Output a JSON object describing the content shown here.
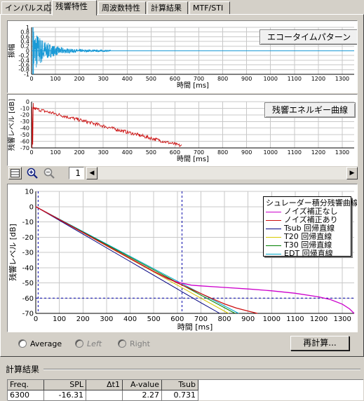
{
  "tabs": [
    {
      "label": "インパルス応答",
      "active": false
    },
    {
      "label": "残響特性",
      "active": true
    },
    {
      "label": "周波数特性",
      "active": false
    },
    {
      "label": "計算結果",
      "active": false
    },
    {
      "label": "MTF/STI",
      "active": false
    }
  ],
  "toolbar": {
    "icons": [
      "fit-view-icon",
      "zoom-in-icon",
      "zoom-out-icon"
    ],
    "page_value": "1",
    "scroll_left": "◀",
    "scroll_right": "▶"
  },
  "chart_data": [
    {
      "type": "line",
      "title": "エコータイムパターン",
      "xlabel": "時間 [ms]",
      "ylabel": "振幅",
      "xlim": [
        0,
        1350
      ],
      "ylim": [
        -1,
        1
      ],
      "xticks": [
        0,
        100,
        200,
        300,
        400,
        500,
        600,
        700,
        800,
        900,
        1000,
        1100,
        1200,
        1300
      ],
      "yticks": [
        -1,
        -0.8,
        -0.6,
        -0.4,
        -0.2,
        0,
        0.2,
        0.4,
        0.6,
        0.8,
        1
      ],
      "ytick_labels": [
        "-1",
        "-0.8",
        "-0.6",
        "-0.4",
        "-0.2",
        "0",
        "0.2",
        "0.4",
        "0.6",
        "0.8",
        "1"
      ],
      "grid": true,
      "series": [
        {
          "color": "#1b9ad6",
          "points": []
        }
      ]
    },
    {
      "type": "line",
      "title": "残響エネルギー曲線",
      "xlabel": "時間 [ms]",
      "ylabel": "残響レベル [dB]",
      "xlim": [
        0,
        1350
      ],
      "ylim": [
        -70,
        0
      ],
      "xticks": [
        0,
        100,
        200,
        300,
        400,
        500,
        600,
        700,
        800,
        900,
        1000,
        1100,
        1200,
        1300
      ],
      "yticks": [
        -70,
        -60,
        -50,
        -40,
        -30,
        -20,
        -10,
        0
      ],
      "ytick_labels": [
        "-70",
        "-60",
        "-50",
        "-40",
        "-30",
        "-20",
        "-10",
        "0"
      ],
      "grid": true,
      "series": [
        {
          "color": "#cc1111",
          "points": []
        }
      ]
    },
    {
      "type": "line",
      "title": "シュレーダー積分残響曲線",
      "xlabel": "時間 [ms]",
      "ylabel": "残響レベル [dB]",
      "xlim": [
        0,
        1350
      ],
      "ylim": [
        -70,
        10
      ],
      "xticks": [
        0,
        100,
        200,
        300,
        400,
        500,
        600,
        700,
        800,
        900,
        1000,
        1100,
        1200,
        1300
      ],
      "yticks": [
        -70,
        -60,
        -50,
        -40,
        -30,
        -20,
        -10,
        0,
        10
      ],
      "ytick_labels": [
        "-70",
        "-60",
        "-50",
        "-40",
        "-30",
        "-20",
        "-10",
        "0",
        "10"
      ],
      "grid": true,
      "legend": "top-right",
      "cursor": {
        "x": 620,
        "y": -60,
        "x0": 10
      },
      "series": [
        {
          "name": "ノイズ補正なし",
          "color": "#cc00cc",
          "points": [
            [
              0,
              0
            ],
            [
              100,
              -8.5
            ],
            [
              200,
              -17
            ],
            [
              300,
              -25.5
            ],
            [
              400,
              -34
            ],
            [
              500,
              -42.5
            ],
            [
              560,
              -47.3
            ],
            [
              600,
              -49.5
            ],
            [
              660,
              -51.5
            ],
            [
              700,
              -52
            ],
            [
              800,
              -53
            ],
            [
              900,
              -54
            ],
            [
              1000,
              -55.2
            ],
            [
              1100,
              -56.8
            ],
            [
              1200,
              -59.2
            ],
            [
              1250,
              -61
            ],
            [
              1300,
              -64
            ],
            [
              1330,
              -67
            ],
            [
              1350,
              -70
            ]
          ]
        },
        {
          "name": "ノイズ補正あり",
          "color": "#cc1111",
          "points": [
            [
              0,
              0
            ],
            [
              100,
              -8.5
            ],
            [
              200,
              -17
            ],
            [
              300,
              -25.5
            ],
            [
              400,
              -34
            ],
            [
              500,
              -42.5
            ],
            [
              600,
              -50
            ],
            [
              650,
              -53.5
            ],
            [
              700,
              -57
            ],
            [
              750,
              -60.5
            ],
            [
              800,
              -63.8
            ],
            [
              850,
              -66.5
            ],
            [
              900,
              -68.5
            ],
            [
              940,
              -70
            ]
          ]
        },
        {
          "name": "Tsub 回帰直線",
          "color": "#000080",
          "points": [
            [
              0,
              0
            ],
            [
              100,
              -9
            ],
            [
              200,
              -18
            ],
            [
              300,
              -27
            ],
            [
              400,
              -36
            ],
            [
              500,
              -45
            ],
            [
              600,
              -54
            ],
            [
              700,
              -63
            ],
            [
              780,
              -70
            ]
          ]
        },
        {
          "name": "T20 回帰直線",
          "color": "#d6c800",
          "points": [
            [
              0,
              0
            ],
            [
              700,
              -60
            ],
            [
              817,
              -70
            ]
          ]
        },
        {
          "name": "T30 回帰直線",
          "color": "#008000",
          "points": [
            [
              0,
              0
            ],
            [
              700,
              -58
            ],
            [
              845,
              -70
            ]
          ]
        },
        {
          "name": "EDT 回帰直線",
          "color": "#00a8c8",
          "points": [
            [
              0,
              0
            ],
            [
              700,
              -57
            ],
            [
              860,
              -70
            ]
          ]
        }
      ]
    }
  ],
  "controls": {
    "radios": [
      {
        "label": "Average",
        "enabled": true
      },
      {
        "label": "Left",
        "enabled": false
      },
      {
        "label": "Right",
        "enabled": false
      }
    ],
    "recalc_label": "再計算..."
  },
  "results": {
    "title": "計算結果",
    "columns": [
      "Freq.",
      "SPL",
      "Δt1",
      "A-value",
      "Tsub"
    ],
    "rows": [
      [
        "6300",
        "-16.31",
        "",
        "2.27",
        "0.731"
      ]
    ]
  }
}
